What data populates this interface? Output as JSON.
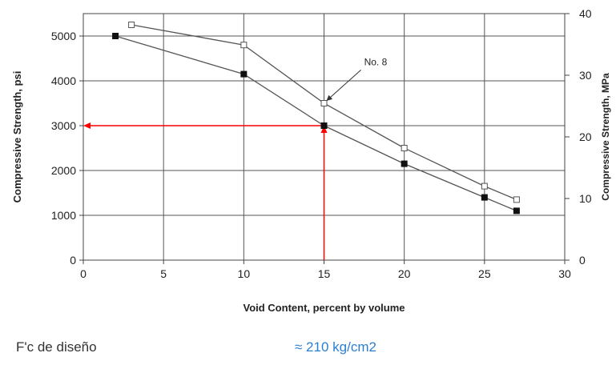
{
  "chart_data": {
    "type": "line",
    "xlabel": "Void Content, percent by volume",
    "ylabel": "Compressive Strength, psi",
    "y2label": "Compressive Strength, MPa",
    "xlim": [
      0,
      30
    ],
    "ylim": [
      0,
      5500
    ],
    "y2lim": [
      0,
      40
    ],
    "x_ticks": [
      0,
      5,
      10,
      15,
      20,
      25,
      30
    ],
    "y_ticks": [
      0,
      1000,
      2000,
      3000,
      4000,
      5000
    ],
    "y2_ticks": [
      0,
      10,
      20,
      30,
      40
    ],
    "grid": true,
    "series": [
      {
        "marker": "open-square",
        "x": [
          3,
          10,
          15,
          20,
          25,
          27
        ],
        "y": [
          5250,
          4800,
          3500,
          2500,
          1650,
          1350
        ]
      },
      {
        "marker": "filled-square",
        "x": [
          2,
          10,
          15,
          20,
          25,
          27
        ],
        "y": [
          5000,
          4150,
          3000,
          2150,
          1400,
          1100
        ]
      }
    ],
    "annotations": [
      {
        "text": "No. 8",
        "x": 17.5,
        "y": 4350,
        "arrow_to": [
          15,
          3500
        ]
      }
    ],
    "reference_lines": {
      "color": "#ff0000",
      "from_x": 15,
      "at_y": 3000
    }
  },
  "footer": {
    "label": "F'c de diseño",
    "value": "≈ 210 kg/cm2"
  }
}
